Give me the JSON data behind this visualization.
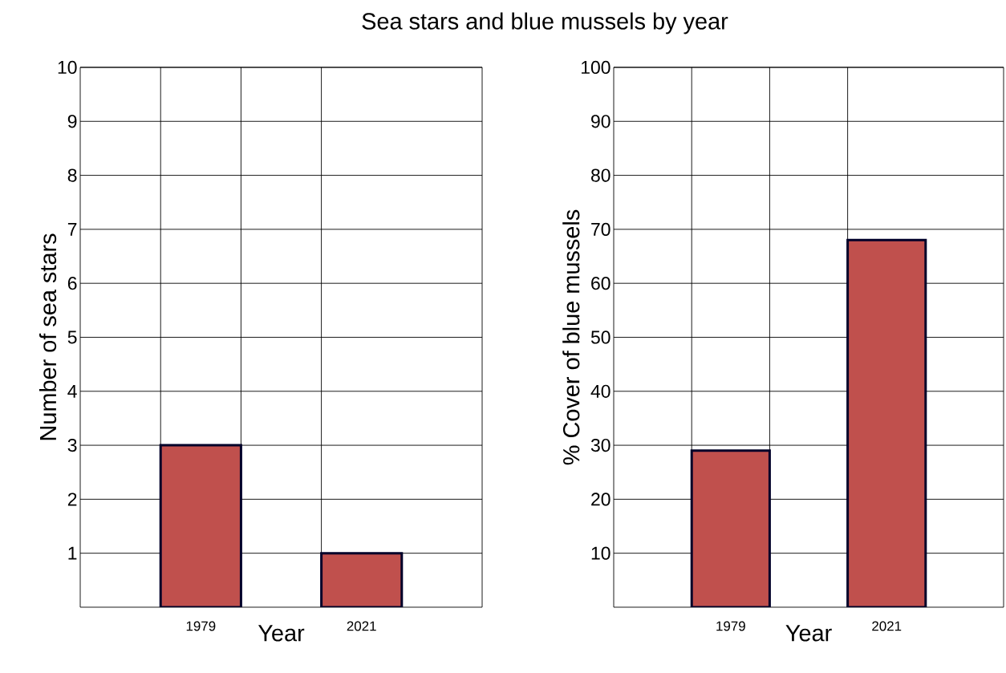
{
  "chart_data": [
    {
      "type": "bar",
      "title": "Sea stars and blue mussels by year",
      "xlabel": "Year",
      "ylabel": "Number of sea stars",
      "categories": [
        "1979",
        "2021"
      ],
      "values": [
        3,
        1
      ],
      "color": "#c0504d",
      "ylim": [
        0,
        10
      ],
      "yticks": [
        1,
        2,
        3,
        4,
        5,
        6,
        7,
        8,
        9,
        10
      ],
      "grid": true
    },
    {
      "type": "bar",
      "xlabel": "Year",
      "ylabel": "% Cover of blue mussels",
      "categories": [
        "1979",
        "2021"
      ],
      "values": [
        29,
        68
      ],
      "color": "#c0504d",
      "ylim": [
        0,
        100
      ],
      "yticks": [
        10,
        20,
        30,
        40,
        50,
        60,
        70,
        80,
        90,
        100
      ],
      "grid": true
    }
  ]
}
